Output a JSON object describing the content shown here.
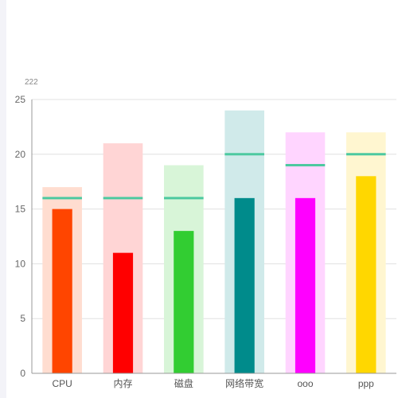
{
  "chart_data": {
    "type": "bar",
    "y_unit_label": "222",
    "categories": [
      "CPU",
      "内存",
      "磁盘",
      "网络带宽",
      "ooo",
      "ppp"
    ],
    "series": [
      {
        "values": [
          17,
          21,
          19,
          24,
          22,
          22
        ]
      },
      {
        "values": [
          15,
          11,
          13,
          16,
          16,
          18
        ]
      },
      {
        "values": [
          16,
          16,
          16,
          20,
          19,
          20
        ]
      }
    ],
    "bar_colors": [
      "#ff4500",
      "#ff0000",
      "#32cd32",
      "#008b8b",
      "#ff00ff",
      "#ffd700"
    ],
    "background_colors": [
      "#ffddd0",
      "#ffd5d5",
      "#d8f5d8",
      "#d0eaea",
      "#ffd5ff",
      "#fff6d0"
    ],
    "marker_color": "#4dc9a0",
    "yticks": [
      0,
      5,
      10,
      15,
      20,
      25
    ],
    "ylim": [
      0,
      25
    ],
    "grid": true
  }
}
